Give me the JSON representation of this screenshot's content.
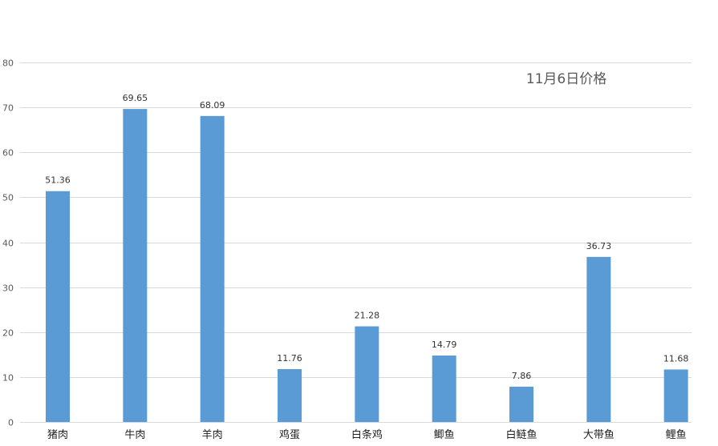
{
  "chart_data": {
    "type": "bar",
    "annotation": "11月6日价格",
    "categories": [
      "猪肉",
      "牛肉",
      "羊肉",
      "鸡蛋",
      "白条鸡",
      "鲫鱼",
      "白鲢鱼",
      "大带鱼",
      "鲤鱼"
    ],
    "values": [
      51.36,
      69.65,
      68.09,
      11.76,
      21.28,
      14.79,
      7.86,
      36.73,
      11.68
    ],
    "value_labels": [
      "51.36",
      "69.65",
      "68.09",
      "11.76",
      "21.28",
      "14.79",
      "7.86",
      "36.73",
      "11.68"
    ],
    "ylim": [
      0,
      80
    ],
    "yticks": [
      0,
      10,
      20,
      30,
      40,
      50,
      60,
      70,
      80
    ],
    "grid": true,
    "bar_color": "#5B9BD5",
    "grid_color": "#D9D9D9"
  }
}
